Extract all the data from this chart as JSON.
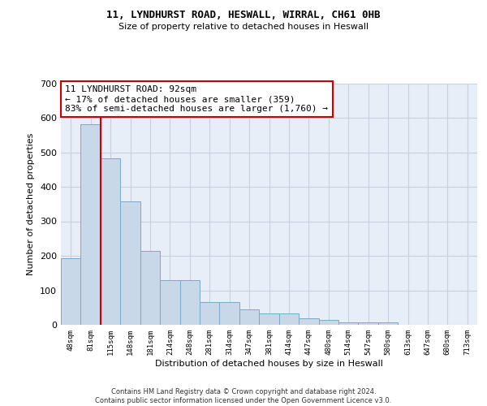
{
  "title_line1": "11, LYNDHURST ROAD, HESWALL, WIRRAL, CH61 0HB",
  "title_line2": "Size of property relative to detached houses in Heswall",
  "xlabel": "Distribution of detached houses by size in Heswall",
  "ylabel": "Number of detached properties",
  "categories": [
    "48sqm",
    "81sqm",
    "115sqm",
    "148sqm",
    "181sqm",
    "214sqm",
    "248sqm",
    "281sqm",
    "314sqm",
    "347sqm",
    "381sqm",
    "414sqm",
    "447sqm",
    "480sqm",
    "514sqm",
    "547sqm",
    "580sqm",
    "613sqm",
    "647sqm",
    "680sqm",
    "713sqm"
  ],
  "values": [
    193,
    582,
    483,
    357,
    215,
    130,
    130,
    65,
    65,
    45,
    32,
    32,
    18,
    15,
    8,
    8,
    8,
    0,
    0,
    0,
    0
  ],
  "bar_color": "#c8d8e8",
  "bar_edge_color": "#7aaac8",
  "property_line_x": 1.5,
  "annotation_text": "11 LYNDHURST ROAD: 92sqm\n← 17% of detached houses are smaller (359)\n83% of semi-detached houses are larger (1,760) →",
  "annotation_box_color": "#ffffff",
  "annotation_box_edge_color": "#cc0000",
  "vline_color": "#cc0000",
  "grid_color": "#c8d0e0",
  "background_color": "#e8eef8",
  "footer_text": "Contains HM Land Registry data © Crown copyright and database right 2024.\nContains public sector information licensed under the Open Government Licence v3.0.",
  "ylim": [
    0,
    700
  ],
  "yticks": [
    0,
    100,
    200,
    300,
    400,
    500,
    600,
    700
  ]
}
